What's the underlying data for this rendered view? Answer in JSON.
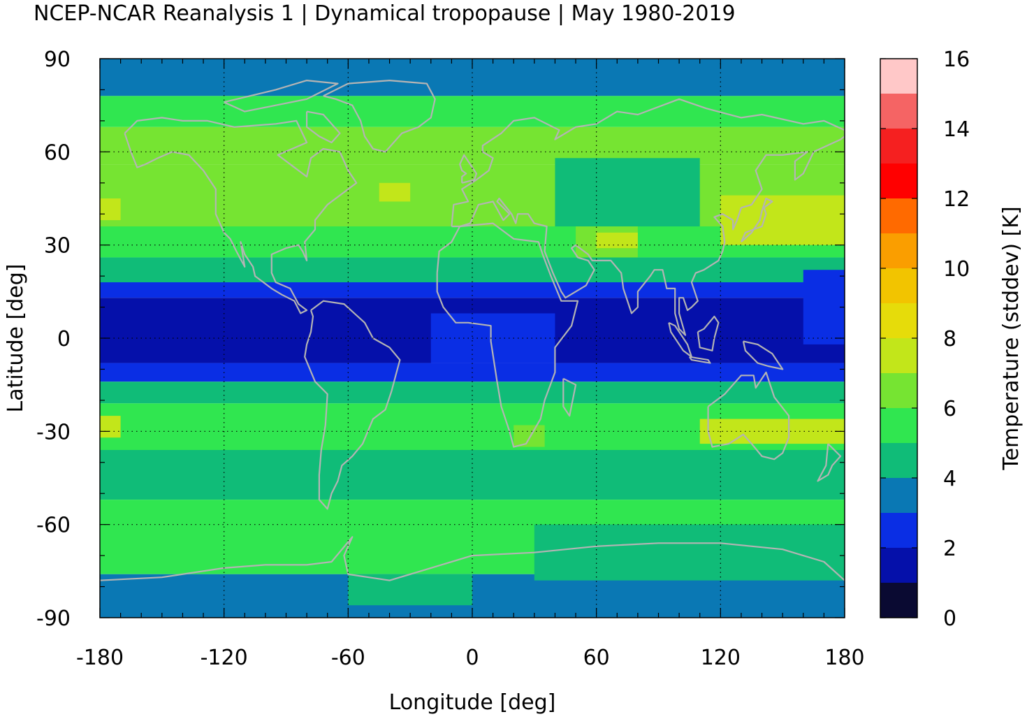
{
  "title": "NCEP-NCAR Reanalysis 1 | Dynamical tropopause | May 1980-2019",
  "map": {
    "projection": "equirectangular",
    "extent_lon": [
      -180,
      180
    ],
    "extent_lat": [
      -90,
      90
    ],
    "coastline_color": "#b4b4b4",
    "grid": "dotted at 60 deg lon / 30 deg lat",
    "x_axis": {
      "label": "Longitude [deg]",
      "ticks": [
        {
          "value": -180,
          "label": "-180"
        },
        {
          "value": -120,
          "label": "-120"
        },
        {
          "value": -60,
          "label": "-60"
        },
        {
          "value": 0,
          "label": "0"
        },
        {
          "value": 60,
          "label": "60"
        },
        {
          "value": 120,
          "label": "120"
        },
        {
          "value": 180,
          "label": "180"
        }
      ]
    },
    "y_axis": {
      "label": "Latitude [deg]",
      "ticks": [
        {
          "value": 90,
          "label": "90"
        },
        {
          "value": 60,
          "label": "60"
        },
        {
          "value": 30,
          "label": "30"
        },
        {
          "value": 0,
          "label": "0"
        },
        {
          "value": -30,
          "label": "-30"
        },
        {
          "value": -60,
          "label": "-60"
        },
        {
          "value": -90,
          "label": "-90"
        }
      ]
    },
    "field_lat_bands": [
      {
        "lat_from": 90,
        "lat_to": 78,
        "value": 3.5
      },
      {
        "lat_from": 78,
        "lat_to": 68,
        "value": 5.5
      },
      {
        "lat_from": 68,
        "lat_to": 56,
        "value": 6.5
      },
      {
        "lat_from": 56,
        "lat_to": 36,
        "value": 6.8
      },
      {
        "lat_from": 36,
        "lat_to": 26,
        "value": 5.5
      },
      {
        "lat_from": 26,
        "lat_to": 18,
        "value": 4.5
      },
      {
        "lat_from": 18,
        "lat_to": 13,
        "value": 2.5
      },
      {
        "lat_from": 13,
        "lat_to": -8,
        "value": 1.5
      },
      {
        "lat_from": -8,
        "lat_to": -14,
        "value": 2.5
      },
      {
        "lat_from": -14,
        "lat_to": -21,
        "value": 4.5
      },
      {
        "lat_from": -21,
        "lat_to": -36,
        "value": 5.5
      },
      {
        "lat_from": -36,
        "lat_to": -52,
        "value": 4.5
      },
      {
        "lat_from": -52,
        "lat_to": -76,
        "value": 5.5
      },
      {
        "lat_from": -76,
        "lat_to": -90,
        "value": 3.5
      }
    ],
    "field_patches": [
      {
        "lon": [
          -180,
          -170
        ],
        "lat": [
          45,
          38
        ],
        "value": 7.5
      },
      {
        "lon": [
          -45,
          -30
        ],
        "lat": [
          50,
          44
        ],
        "value": 7.5
      },
      {
        "lon": [
          40,
          110
        ],
        "lat": [
          58,
          36
        ],
        "value": 4.5
      },
      {
        "lon": [
          50,
          80
        ],
        "lat": [
          36,
          26
        ],
        "value": 6.5
      },
      {
        "lon": [
          60,
          80
        ],
        "lat": [
          34,
          29
        ],
        "value": 7.5
      },
      {
        "lon": [
          120,
          180
        ],
        "lat": [
          46,
          30
        ],
        "value": 7.5
      },
      {
        "lon": [
          160,
          180
        ],
        "lat": [
          22,
          -2
        ],
        "value": 2.5
      },
      {
        "lon": [
          -20,
          40
        ],
        "lat": [
          8,
          -8
        ],
        "value": 2.5
      },
      {
        "lon": [
          -180,
          -170
        ],
        "lat": [
          -25,
          -32
        ],
        "value": 7.5
      },
      {
        "lon": [
          110,
          180
        ],
        "lat": [
          -26,
          -34
        ],
        "value": 7.5
      },
      {
        "lon": [
          20,
          35
        ],
        "lat": [
          -28,
          -35
        ],
        "value": 6.5
      },
      {
        "lon": [
          20,
          100
        ],
        "lat": [
          -38,
          -48
        ],
        "value": 4.5
      },
      {
        "lon": [
          -120,
          -40
        ],
        "lat": [
          -54,
          -62
        ],
        "value": 5.5
      },
      {
        "lon": [
          30,
          180
        ],
        "lat": [
          -60,
          -78
        ],
        "value": 4.5
      },
      {
        "lon": [
          -60,
          0
        ],
        "lat": [
          -76,
          -86
        ],
        "value": 4.5
      }
    ]
  },
  "colorbar": {
    "label": "Temperature (stddev) [K]",
    "range": [
      0,
      16
    ],
    "ticks": [
      {
        "value": 16,
        "label": "16"
      },
      {
        "value": 14,
        "label": "14"
      },
      {
        "value": 12,
        "label": "12"
      },
      {
        "value": 10,
        "label": "10"
      },
      {
        "value": 8,
        "label": "8"
      },
      {
        "value": 6,
        "label": "6"
      },
      {
        "value": 4,
        "label": "4"
      },
      {
        "value": 2,
        "label": "2"
      },
      {
        "value": 0,
        "label": "0"
      }
    ],
    "bins": [
      {
        "from": 0,
        "to": 1,
        "color": "#0a0a32"
      },
      {
        "from": 1,
        "to": 2,
        "color": "#0510aa"
      },
      {
        "from": 2,
        "to": 3,
        "color": "#0a2ee4"
      },
      {
        "from": 3,
        "to": 4,
        "color": "#0a78b4"
      },
      {
        "from": 4,
        "to": 5,
        "color": "#10bc78"
      },
      {
        "from": 5,
        "to": 6,
        "color": "#30e650"
      },
      {
        "from": 6,
        "to": 7,
        "color": "#76e432"
      },
      {
        "from": 7,
        "to": 8,
        "color": "#c2e61a"
      },
      {
        "from": 8,
        "to": 9,
        "color": "#e6dc0a"
      },
      {
        "from": 9,
        "to": 10,
        "color": "#f2c400"
      },
      {
        "from": 10,
        "to": 11,
        "color": "#fa9e00"
      },
      {
        "from": 11,
        "to": 12,
        "color": "#ff6a00"
      },
      {
        "from": 12,
        "to": 13,
        "color": "#ff0000"
      },
      {
        "from": 13,
        "to": 14,
        "color": "#f52020"
      },
      {
        "from": 14,
        "to": 15,
        "color": "#f56464"
      },
      {
        "from": 15,
        "to": 16,
        "color": "#ffc8c8"
      }
    ]
  }
}
